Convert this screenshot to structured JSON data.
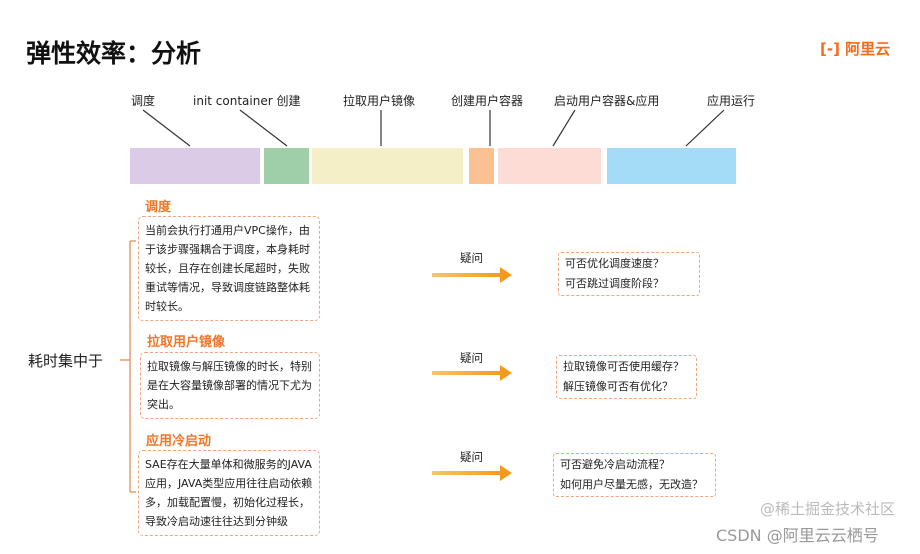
{
  "title": "弹性效率：分析",
  "logo": "阿里云",
  "colors": {
    "accent": "#f0762a",
    "schedule": "#dccbe6",
    "init": "#9fcfa9",
    "pull": "#f5efc8",
    "create": "#fbc192",
    "start": "#fddcd6",
    "run": "#a4dcf5"
  },
  "timeline": [
    "调度",
    "init container 创建",
    "拉取用户镜像",
    "创建用户容器",
    "启动用户容器&应用",
    "应用运行"
  ],
  "bracket_label": "耗时集中于",
  "ask_label": "疑问",
  "sections": [
    {
      "heading": "调度",
      "text": "当前会执行打通用户VPC操作，由于该步骤强耦合于调度，本身耗时较长，且存在创建长尾超时，失败重试等情况，导致调度链路整体耗时较长。",
      "questions": [
        "可否优化调度速度？",
        "可否跳过调度阶段？"
      ]
    },
    {
      "heading": "拉取用户镜像",
      "text": "拉取镜像与解压镜像的时长，特别是在大容量镜像部署的情况下尤为突出。",
      "questions": [
        "拉取镜像可否使用缓存？",
        "解压镜像可否有优化？"
      ]
    },
    {
      "heading": "应用冷启动",
      "text": "SAE存在大量单体和微服务的JAVA应用，JAVA类型应用往往启动依赖多，加载配置慢，初始化过程长，导致冷启动速往往达到分钟级",
      "questions": [
        "可否避免冷启动流程？",
        "如何用户尽量无感，无改造？"
      ]
    }
  ],
  "watermark": "CSDN @阿里云云栖号",
  "watermark2": "@稀土掘金技术社区"
}
